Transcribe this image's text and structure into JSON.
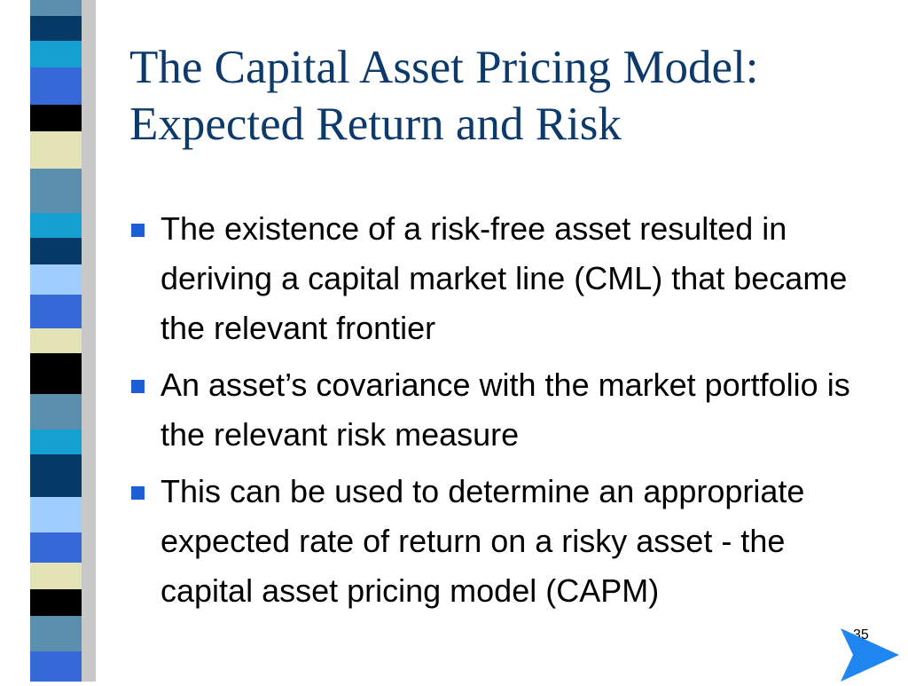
{
  "slide": {
    "title_line1": "The Capital Asset Pricing Model:",
    "title_line2": "Expected Return and Risk",
    "bullets": [
      "The existence of a risk-free asset resulted in deriving a capital market line (CML) that became the relevant frontier",
      "An asset’s covariance with the market portfolio is the relevant risk measure",
      "This can be used to determine an appropriate expected rate of return on a risky asset - the capital asset pricing model (CAPM)"
    ],
    "page_number": "35"
  },
  "colors": {
    "title": "#0d3a6b",
    "bullet": "#1c5fd4",
    "stripe_palette": [
      "#5a90ad",
      "#053a66",
      "#3569d8",
      "#000000",
      "#e3e3b7",
      "#14a1d2",
      "#9fcdff"
    ],
    "nav_arrow": "#1f86f0"
  },
  "icons": {
    "bullet": "square-bullet-icon",
    "next": "next-arrow-icon"
  }
}
